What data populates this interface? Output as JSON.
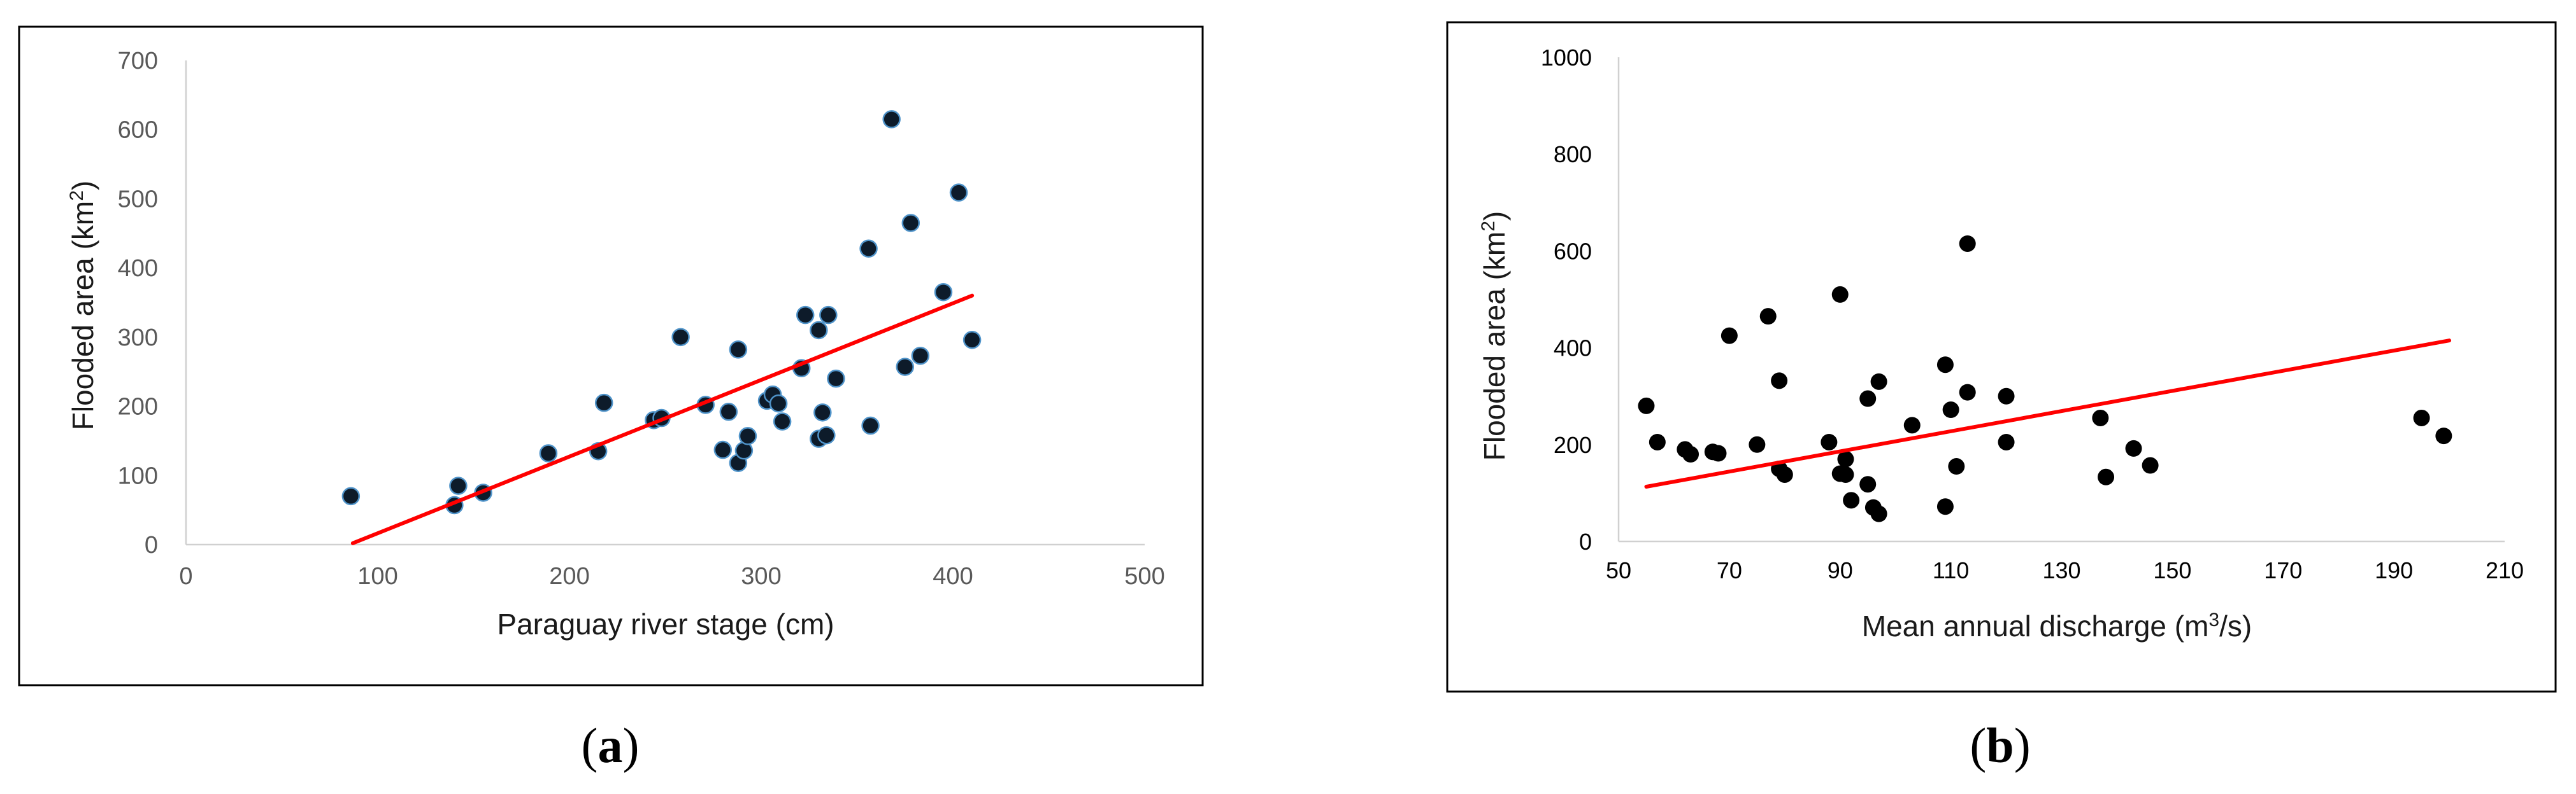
{
  "chart_data": [
    {
      "type": "scatter",
      "panel": "(a)",
      "panel_label_letter": "a",
      "title": "",
      "xlabel": "Paraguay river stage (cm)",
      "ylabel_main": "Flooded area (km",
      "ylabel_sup": "2",
      "ylabel_end": ")",
      "xlim": [
        0,
        500
      ],
      "ylim": [
        0,
        700
      ],
      "xticks": [
        0,
        100,
        200,
        300,
        400,
        500
      ],
      "yticks": [
        0,
        100,
        200,
        300,
        400,
        500,
        600,
        700
      ],
      "marker_fill": "#0d1b2a",
      "marker_edge": "#4f93c9",
      "trend_color": "#ff0000",
      "trend_line": {
        "x": [
          87,
          410
        ],
        "y": [
          2,
          360
        ]
      },
      "points": [
        {
          "x": 86,
          "y": 70
        },
        {
          "x": 140,
          "y": 57
        },
        {
          "x": 142,
          "y": 85
        },
        {
          "x": 155,
          "y": 75
        },
        {
          "x": 189,
          "y": 132
        },
        {
          "x": 215,
          "y": 135
        },
        {
          "x": 218,
          "y": 205
        },
        {
          "x": 244,
          "y": 180
        },
        {
          "x": 248,
          "y": 183
        },
        {
          "x": 258,
          "y": 300
        },
        {
          "x": 271,
          "y": 202
        },
        {
          "x": 280,
          "y": 137
        },
        {
          "x": 283,
          "y": 192
        },
        {
          "x": 288,
          "y": 282
        },
        {
          "x": 288,
          "y": 118
        },
        {
          "x": 291,
          "y": 136
        },
        {
          "x": 293,
          "y": 157
        },
        {
          "x": 303,
          "y": 208
        },
        {
          "x": 306,
          "y": 217
        },
        {
          "x": 309,
          "y": 204
        },
        {
          "x": 311,
          "y": 178
        },
        {
          "x": 321,
          "y": 255
        },
        {
          "x": 323,
          "y": 332
        },
        {
          "x": 330,
          "y": 310
        },
        {
          "x": 330,
          "y": 153
        },
        {
          "x": 332,
          "y": 191
        },
        {
          "x": 334,
          "y": 158
        },
        {
          "x": 335,
          "y": 332
        },
        {
          "x": 339,
          "y": 240
        },
        {
          "x": 356,
          "y": 428
        },
        {
          "x": 357,
          "y": 172
        },
        {
          "x": 368,
          "y": 615
        },
        {
          "x": 375,
          "y": 257
        },
        {
          "x": 378,
          "y": 465
        },
        {
          "x": 383,
          "y": 273
        },
        {
          "x": 395,
          "y": 365
        },
        {
          "x": 403,
          "y": 509
        },
        {
          "x": 410,
          "y": 296
        }
      ]
    },
    {
      "type": "scatter",
      "panel": "(b)",
      "panel_label_letter": "b",
      "title": "",
      "xlabel_main": "Mean annual discharge (m",
      "xlabel_sup": "3",
      "xlabel_end": "/s)",
      "ylabel_main": "Flooded area (km",
      "ylabel_sup": "2",
      "ylabel_end": ")",
      "xlim": [
        50,
        210
      ],
      "ylim": [
        0,
        1000
      ],
      "xticks": [
        50,
        70,
        90,
        110,
        130,
        150,
        170,
        190,
        210
      ],
      "yticks": [
        0,
        200,
        400,
        600,
        800,
        1000
      ],
      "marker_fill": "#000000",
      "trend_color": "#ff0000",
      "trend_line": {
        "x": [
          55,
          200
        ],
        "y": [
          113,
          415
        ]
      },
      "points": [
        {
          "x": 55,
          "y": 280
        },
        {
          "x": 57,
          "y": 205
        },
        {
          "x": 62,
          "y": 190
        },
        {
          "x": 63,
          "y": 180
        },
        {
          "x": 67,
          "y": 185
        },
        {
          "x": 68,
          "y": 182
        },
        {
          "x": 70,
          "y": 425
        },
        {
          "x": 75,
          "y": 200
        },
        {
          "x": 77,
          "y": 465
        },
        {
          "x": 79,
          "y": 332
        },
        {
          "x": 79,
          "y": 150
        },
        {
          "x": 80,
          "y": 138
        },
        {
          "x": 88,
          "y": 205
        },
        {
          "x": 90,
          "y": 510
        },
        {
          "x": 90,
          "y": 140
        },
        {
          "x": 91,
          "y": 138
        },
        {
          "x": 91,
          "y": 170
        },
        {
          "x": 92,
          "y": 85
        },
        {
          "x": 95,
          "y": 118
        },
        {
          "x": 95,
          "y": 295
        },
        {
          "x": 96,
          "y": 70
        },
        {
          "x": 97,
          "y": 57
        },
        {
          "x": 97,
          "y": 330
        },
        {
          "x": 103,
          "y": 240
        },
        {
          "x": 109,
          "y": 365
        },
        {
          "x": 109,
          "y": 72
        },
        {
          "x": 110,
          "y": 272
        },
        {
          "x": 111,
          "y": 155
        },
        {
          "x": 113,
          "y": 308
        },
        {
          "x": 113,
          "y": 615
        },
        {
          "x": 120,
          "y": 300
        },
        {
          "x": 120,
          "y": 205
        },
        {
          "x": 137,
          "y": 255
        },
        {
          "x": 138,
          "y": 133
        },
        {
          "x": 143,
          "y": 192
        },
        {
          "x": 146,
          "y": 157
        },
        {
          "x": 195,
          "y": 255
        },
        {
          "x": 199,
          "y": 218
        }
      ]
    }
  ]
}
